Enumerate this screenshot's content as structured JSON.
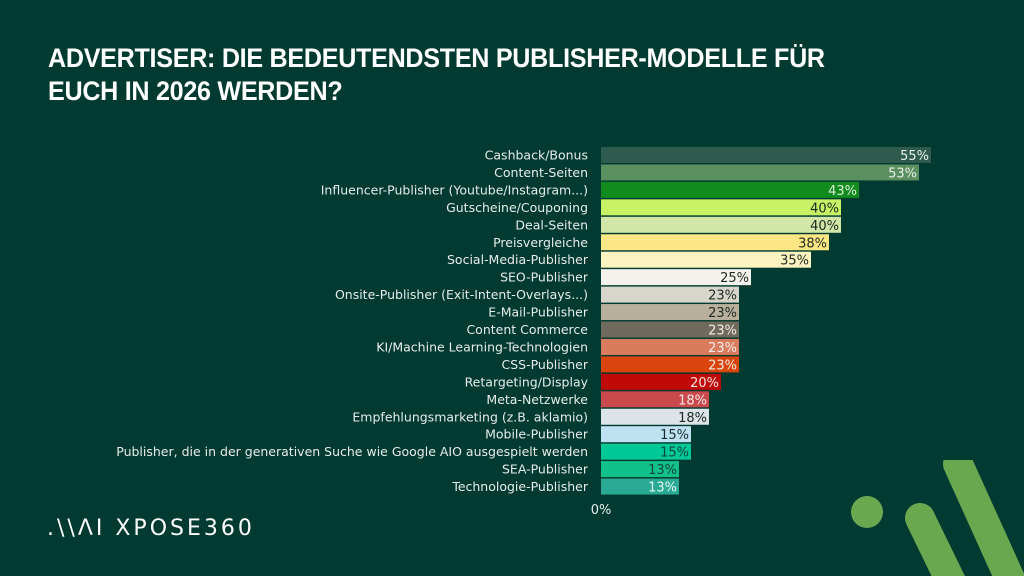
{
  "title": "ADVERTISER: DIE BEDEUTENDSTEN PUBLISHER-MODELLE FÜR EUCH IN 2026 WERDEN?",
  "logo": {
    "mark": ".\\\\ΛI",
    "text": "XPOSE360"
  },
  "colors": {
    "background": "#013a30",
    "accent": "#6aa84f"
  },
  "chart_data": {
    "type": "bar",
    "orientation": "horizontal",
    "title": "ADVERTISER: DIE BEDEUTENDSTEN PUBLISHER-MODELLE FÜR EUCH IN 2026 WERDEN?",
    "xlabel": "",
    "ylabel": "",
    "x_ticks": [
      "0%"
    ],
    "xlim": [
      0,
      55
    ],
    "grid": false,
    "value_suffix": "%",
    "categories": [
      "Cashback/Bonus",
      "Content-Seiten",
      "Influencer-Publisher (Youtube/Instagram...)",
      "Gutscheine/Couponing",
      "Deal-Seiten",
      "Preisvergleiche",
      "Social-Media-Publisher",
      "SEO-Publisher",
      "Onsite-Publisher (Exit-Intent-Overlays...)",
      "E-Mail-Publisher",
      "Content Commerce",
      "KI/Machine Learning-Technologien",
      "CSS-Publisher",
      "Retargeting/Display",
      "Meta-Netzwerke",
      "Empfehlungsmarketing (z.B. aklamio)",
      "Mobile-Publisher",
      "Publisher, die in der generativen Suche wie Google AIO ausgespielt werden",
      "SEA-Publisher",
      "Technologie-Publisher"
    ],
    "values": [
      55,
      53,
      43,
      40,
      40,
      38,
      35,
      25,
      23,
      23,
      23,
      23,
      23,
      20,
      18,
      18,
      15,
      15,
      13,
      13
    ],
    "bar_colors": [
      "#2e5b4e",
      "#5a8f5f",
      "#118a1e",
      "#c8f265",
      "#d2e6a8",
      "#fde784",
      "#fdf3c0",
      "#f4f2ec",
      "#d8d6cc",
      "#b8b09c",
      "#6f6a5c",
      "#d97c5e",
      "#d9450c",
      "#c00a0a",
      "#c9494c",
      "#dce4ea",
      "#bfe2f2",
      "#00c896",
      "#10c28a",
      "#2aaa94"
    ],
    "label_colors": [
      "#e8f0ea",
      "#e8f0ea",
      "#d8f0d8",
      "#1c2a20",
      "#1c2a20",
      "#1c2a20",
      "#1c2a20",
      "#1c2a20",
      "#1c2a20",
      "#1c2a20",
      "#f0eee8",
      "#f6ece6",
      "#f6ece6",
      "#f6e6e6",
      "#f6e6e6",
      "#1c2a20",
      "#1c2a30",
      "#14453a",
      "#14453a",
      "#e6f6f2"
    ]
  }
}
